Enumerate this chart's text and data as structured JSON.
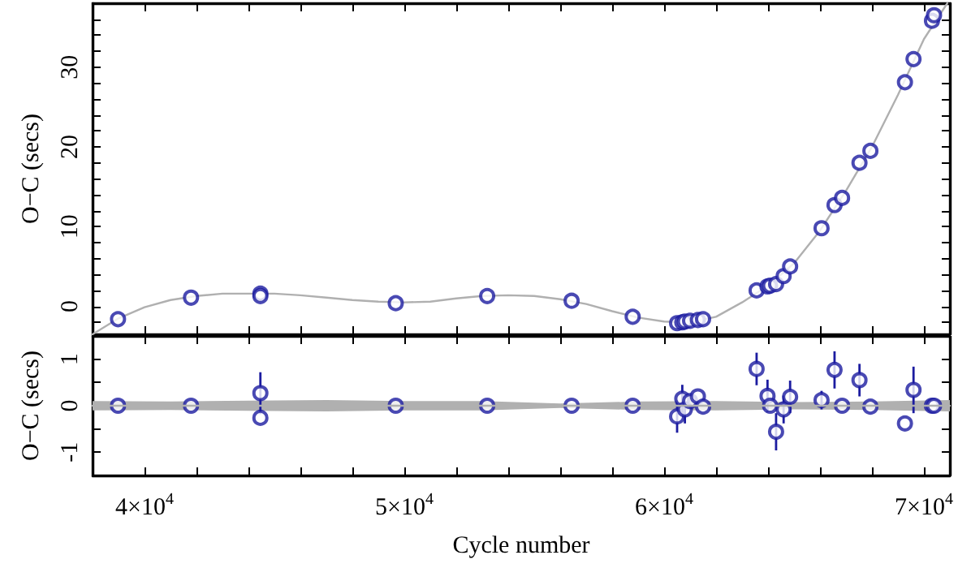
{
  "chart_data": [
    {
      "type": "scatter",
      "ylabel": "O−C (secs)",
      "xlim": [
        38000,
        71000
      ],
      "ylim": [
        -3.5,
        38
      ],
      "tick_labels": "y",
      "grid": false,
      "marker": "circle",
      "xticks": [
        {
          "value": 40000,
          "label": null
        },
        {
          "value": 50000,
          "label": null
        },
        {
          "value": 60000,
          "label": null
        },
        {
          "value": 70000,
          "label": null
        },
        {
          "value": 42000,
          "label": null
        },
        {
          "value": 44000,
          "label": null
        },
        {
          "value": 46000,
          "label": null
        },
        {
          "value": 48000,
          "label": null
        },
        {
          "value": 52000,
          "label": null
        },
        {
          "value": 54000,
          "label": null
        },
        {
          "value": 56000,
          "label": null
        },
        {
          "value": 58000,
          "label": null
        },
        {
          "value": 62000,
          "label": null
        },
        {
          "value": 64000,
          "label": null
        },
        {
          "value": 66000,
          "label": null
        },
        {
          "value": 68000,
          "label": null
        }
      ],
      "yticks": [
        0,
        10,
        20,
        30,
        {
          "value": -2,
          "label": null
        },
        {
          "value": 2,
          "label": null
        },
        {
          "value": 4,
          "label": null
        },
        {
          "value": 6,
          "label": null
        },
        {
          "value": 8,
          "label": null
        },
        {
          "value": 12,
          "label": null
        },
        {
          "value": 14,
          "label": null
        },
        {
          "value": 16,
          "label": null
        },
        {
          "value": 18,
          "label": null
        },
        {
          "value": 22,
          "label": null
        },
        {
          "value": 24,
          "label": null
        },
        {
          "value": 26,
          "label": null
        },
        {
          "value": 28,
          "label": null
        },
        {
          "value": 32,
          "label": null
        },
        {
          "value": 34,
          "label": null
        },
        {
          "value": 36,
          "label": null
        }
      ],
      "series": [
        {
          "type": "line",
          "marker": "none",
          "color": "#b0b0b0",
          "x": [
            38000,
            39000,
            40000,
            41000,
            42000,
            43000,
            44000,
            45000,
            46000,
            47000,
            48000,
            49000,
            50000,
            51000,
            52000,
            53000,
            54000,
            55000,
            56000,
            57000,
            58000,
            59000,
            60000,
            61000,
            62000,
            63000,
            64000,
            65000,
            66000,
            67000,
            68000,
            69000,
            70000,
            70900
          ],
          "values": [
            -3.5,
            -1.5,
            -0.1,
            0.8,
            1.3,
            1.6,
            1.6,
            1.6,
            1.4,
            1.1,
            0.8,
            0.6,
            0.5,
            0.6,
            1.0,
            1.3,
            1.4,
            1.3,
            0.9,
            0.3,
            -0.6,
            -1.4,
            -1.9,
            -2.0,
            -1.3,
            0.5,
            2.6,
            5.4,
            9.5,
            14.5,
            20.0,
            26.5,
            33.5,
            38
          ]
        },
        {
          "color": "#1c1ca0",
          "x": [
            38980,
            41790,
            44460,
            44460,
            49670,
            53190,
            56440,
            58790,
            60500,
            60700,
            60800,
            61000,
            61300,
            61500,
            63560,
            63980,
            64080,
            64310,
            64600,
            64850,
            66060,
            66560,
            66850,
            67520,
            67940,
            69270,
            69600,
            70310,
            70390
          ],
          "values": [
            -1.6,
            1.1,
            1.6,
            1.3,
            0.4,
            1.3,
            0.7,
            -1.3,
            -2.1,
            -2.0,
            -1.9,
            -1.8,
            -1.7,
            -1.6,
            2.0,
            2.5,
            2.6,
            2.8,
            3.8,
            5.0,
            9.8,
            12.7,
            13.6,
            18.0,
            19.5,
            28.1,
            31.0,
            35.8,
            36.5
          ]
        }
      ]
    },
    {
      "type": "scatter",
      "xlabel": "Cycle number",
      "ylabel": "O−C (secs)",
      "xlim": [
        38000,
        71000
      ],
      "ylim": [
        -1.5,
        1.5
      ],
      "grid": false,
      "marker": "circle",
      "xticks": [
        {
          "value": 40000,
          "label": "4×10$^{4}$"
        },
        {
          "value": 50000,
          "label": "5×10$^{4}$"
        },
        {
          "value": 60000,
          "label": "6×10$^{4}$"
        },
        {
          "value": 70000,
          "label": "7×10$^{4}$"
        },
        {
          "value": 42000,
          "label": null
        },
        {
          "value": 44000,
          "label": null
        },
        {
          "value": 46000,
          "label": null
        },
        {
          "value": 48000,
          "label": null
        },
        {
          "value": 52000,
          "label": null
        },
        {
          "value": 54000,
          "label": null
        },
        {
          "value": 56000,
          "label": null
        },
        {
          "value": 58000,
          "label": null
        },
        {
          "value": 62000,
          "label": null
        },
        {
          "value": 64000,
          "label": null
        },
        {
          "value": 66000,
          "label": null
        },
        {
          "value": 68000,
          "label": null
        }
      ],
      "yticks": [
        -1,
        0,
        1,
        {
          "value": -0.5,
          "label": null
        },
        {
          "value": 0.5,
          "label": null
        }
      ],
      "series": [
        {
          "type": "line",
          "marker": "none",
          "color": "#b0b0b0",
          "x": [
            38000,
            41000,
            44000,
            47000,
            50000,
            53000,
            56000,
            59000,
            62000,
            65000,
            68000,
            71000
          ],
          "values": [
            0,
            0,
            0,
            0,
            0,
            0,
            0,
            0,
            0,
            0,
            0,
            0
          ],
          "lower": [
            -0.1,
            -0.09,
            -0.11,
            -0.12,
            -0.1,
            -0.1,
            -0.05,
            -0.09,
            -0.1,
            -0.08,
            -0.09,
            -0.12
          ],
          "upper": [
            0.1,
            0.09,
            0.11,
            0.12,
            0.1,
            0.1,
            0.05,
            0.09,
            0.1,
            0.08,
            0.09,
            0.12
          ]
        },
        {
          "color": "#1c1ca0",
          "x": [
            38980,
            41790,
            44460,
            44460,
            49670,
            53190,
            56440,
            58790,
            60500,
            60700,
            60800,
            61000,
            61300,
            61500,
            63560,
            63980,
            64080,
            64310,
            64600,
            64850,
            66060,
            66560,
            66850,
            67520,
            67940,
            69270,
            69600,
            70310,
            70390
          ],
          "values": [
            0,
            0,
            0.27,
            -0.26,
            0,
            0,
            0,
            0,
            -0.23,
            0.15,
            -0.08,
            0.1,
            0.2,
            -0.02,
            0.79,
            0.21,
            0,
            -0.56,
            -0.08,
            0.19,
            0.12,
            0.77,
            0,
            0.55,
            -0.02,
            -0.38,
            0.34,
            0,
            0
          ],
          "errors": [
            null,
            null,
            0.45,
            null,
            null,
            null,
            null,
            null,
            0.35,
            0.3,
            0.3,
            null,
            null,
            null,
            0.35,
            0.35,
            null,
            0.4,
            0.3,
            0.35,
            0.2,
            0.4,
            null,
            0.35,
            null,
            null,
            0.5,
            null,
            null
          ]
        }
      ]
    }
  ]
}
